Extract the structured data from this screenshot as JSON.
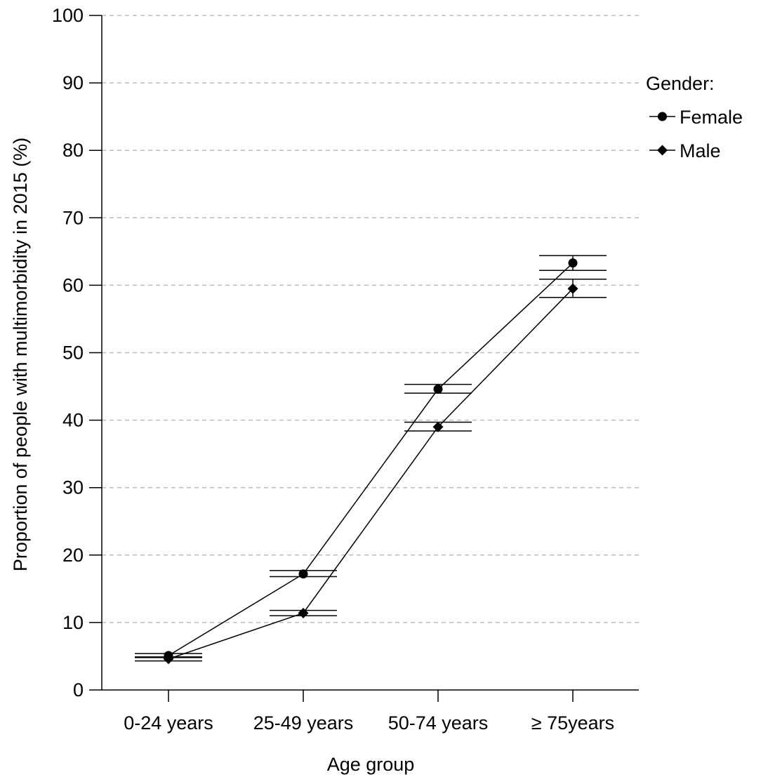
{
  "chart_data": {
    "type": "line",
    "title": "",
    "xlabel": "Age group",
    "ylabel": "Proportion of people with multimorbidity in 2015 (%)",
    "categories": [
      "0-24 years",
      "25-49 years",
      "50-74 years",
      "≥ 75years"
    ],
    "ylim": [
      0,
      100
    ],
    "yticks": [
      0,
      10,
      20,
      30,
      40,
      50,
      60,
      70,
      80,
      90,
      100
    ],
    "grid": "horizontal dashed",
    "legend": {
      "title": "Gender:",
      "placement": "right"
    },
    "series": [
      {
        "name": "Female",
        "marker": "circle",
        "values": [
          5.1,
          17.2,
          44.6,
          63.3
        ],
        "ci_low": [
          4.8,
          16.8,
          44.0,
          62.2
        ],
        "ci_high": [
          5.4,
          17.7,
          45.3,
          64.4
        ]
      },
      {
        "name": "Male",
        "marker": "diamond",
        "values": [
          4.6,
          11.4,
          39.0,
          59.5
        ],
        "ci_low": [
          4.3,
          11.0,
          38.4,
          58.2
        ],
        "ci_high": [
          4.9,
          11.8,
          39.7,
          60.9
        ]
      }
    ]
  }
}
